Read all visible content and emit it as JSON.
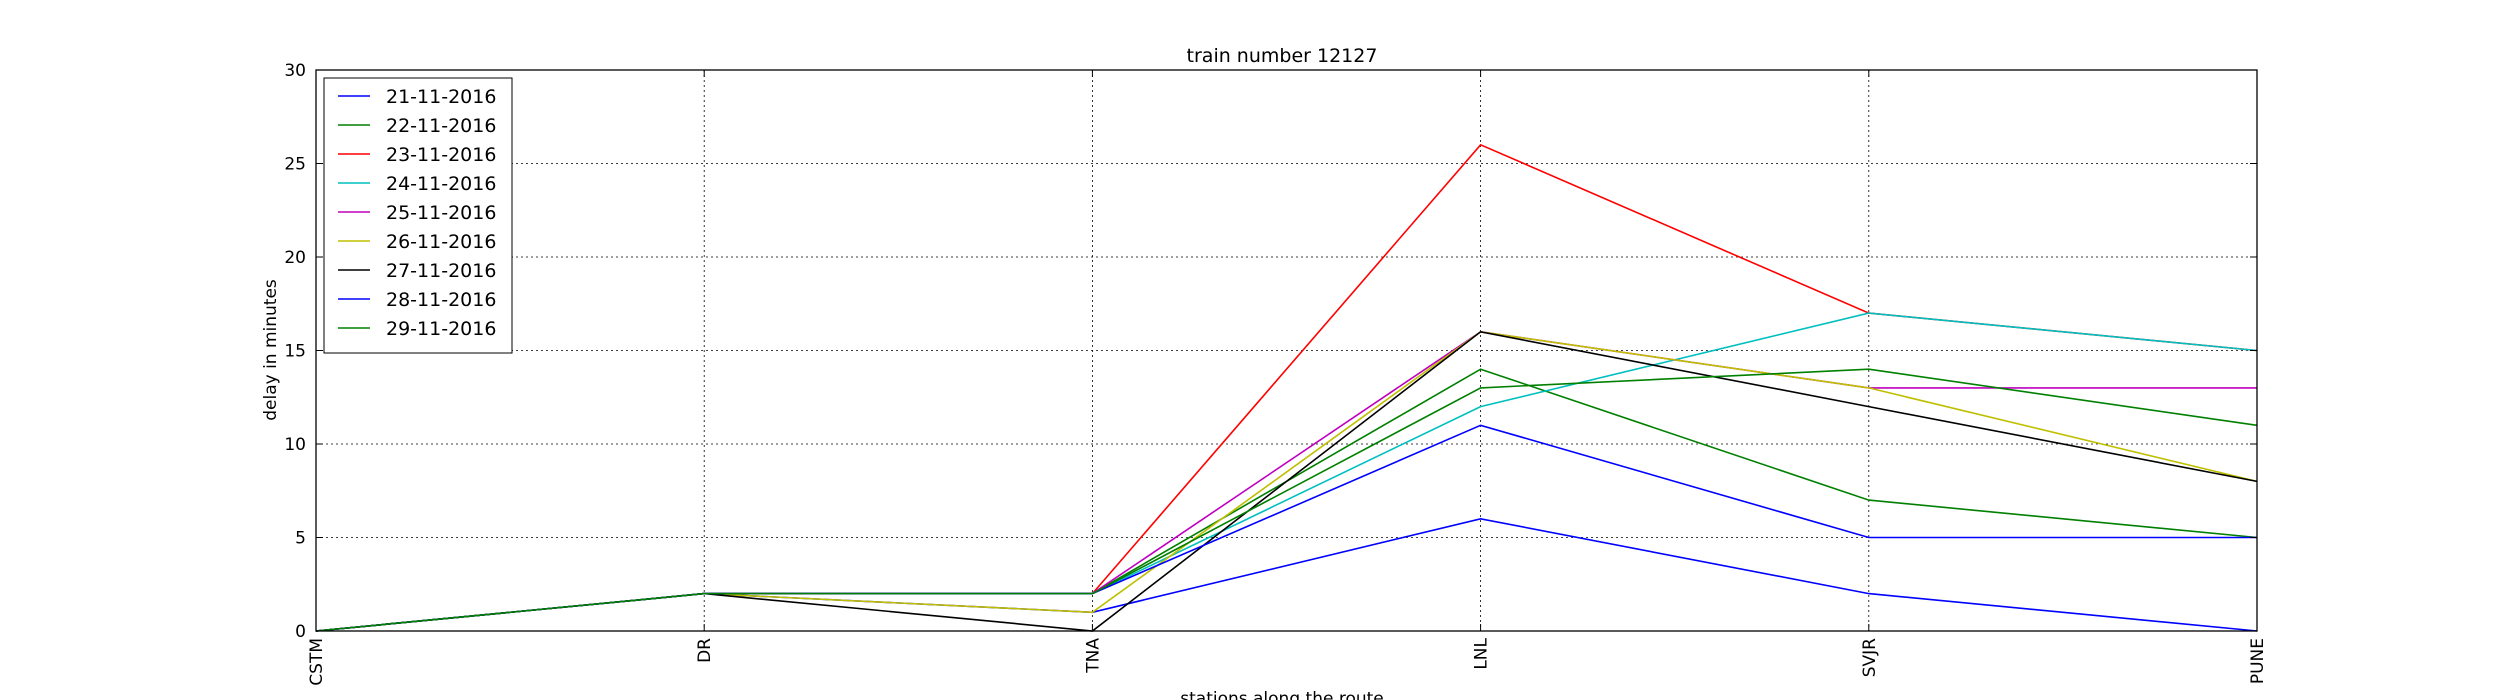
{
  "chart_data": {
    "type": "line",
    "title": "train number 12127",
    "xlabel": "stations along the route",
    "ylabel": "delay in minutes",
    "categories": [
      "CSTM",
      "DR",
      "TNA",
      "LNL",
      "SVJR",
      "PUNE"
    ],
    "ylim": [
      0,
      30
    ],
    "yticks": [
      0,
      5,
      10,
      15,
      20,
      25,
      30
    ],
    "grid": true,
    "legend_position": "top-left",
    "series": [
      {
        "name": "21-11-2016",
        "color": "#0000ff",
        "values": [
          0,
          2,
          1,
          6,
          2,
          0
        ]
      },
      {
        "name": "22-11-2016",
        "color": "#008000",
        "values": [
          0,
          2,
          2,
          14,
          7,
          5
        ]
      },
      {
        "name": "23-11-2016",
        "color": "#ff0000",
        "values": [
          0,
          2,
          2,
          26,
          17,
          15
        ]
      },
      {
        "name": "24-11-2016",
        "color": "#00bfbf",
        "values": [
          0,
          2,
          2,
          12,
          17,
          15
        ]
      },
      {
        "name": "25-11-2016",
        "color": "#bf00bf",
        "values": [
          0,
          2,
          2,
          16,
          13,
          13
        ]
      },
      {
        "name": "26-11-2016",
        "color": "#bfbf00",
        "values": [
          0,
          2,
          1,
          16,
          13,
          8
        ]
      },
      {
        "name": "27-11-2016",
        "color": "#000000",
        "values": [
          0,
          2,
          0,
          16,
          12,
          8
        ]
      },
      {
        "name": "28-11-2016",
        "color": "#0000ff",
        "values": [
          0,
          2,
          2,
          11,
          5,
          5
        ]
      },
      {
        "name": "29-11-2016",
        "color": "#008000",
        "values": [
          0,
          2,
          2,
          13,
          14,
          11
        ]
      }
    ]
  }
}
